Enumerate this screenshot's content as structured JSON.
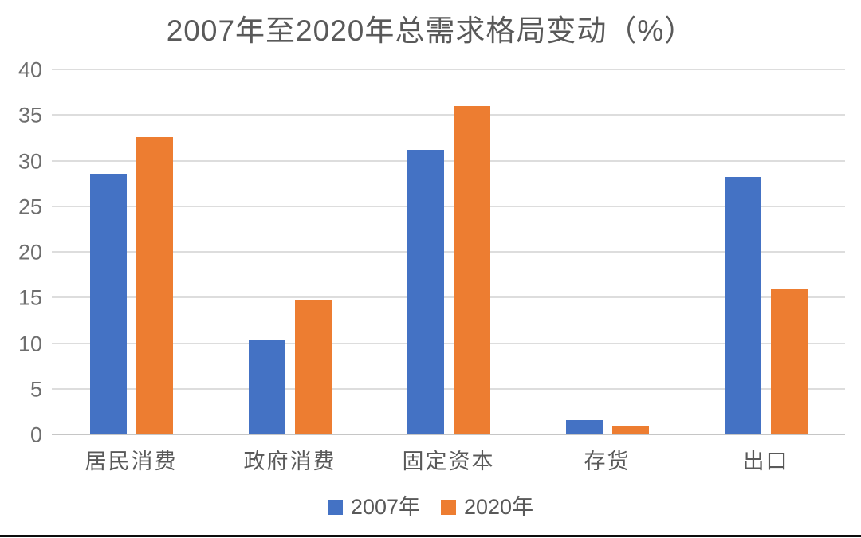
{
  "title": "2007年至2020年总需求格局变动（%）",
  "colors": {
    "series_2007": "#4472C4",
    "series_2020": "#ED7D31",
    "title_text": "#595959",
    "axis_text": "#6e6e6e",
    "gridline": "#dddddd",
    "zero_line": "#c6c6c6",
    "bottom_rule": "#0d0d0d"
  },
  "legend": {
    "items": [
      {
        "label": "2007年",
        "color": "#4472C4"
      },
      {
        "label": "2020年",
        "color": "#ED7D31"
      }
    ],
    "position": "bottom-center"
  },
  "chart_data": {
    "type": "bar",
    "title": "2007年至2020年总需求格局变动（%）",
    "categories": [
      "居民消费",
      "政府消费",
      "固定资本",
      "存货",
      "出口"
    ],
    "series": [
      {
        "name": "2007年",
        "color": "#4472C4",
        "values": [
          28.6,
          10.4,
          31.2,
          1.6,
          28.2
        ]
      },
      {
        "name": "2020年",
        "color": "#ED7D31",
        "values": [
          32.6,
          14.8,
          36.0,
          1.0,
          16.0
        ]
      }
    ],
    "xlabel": "",
    "ylabel": "",
    "ylim": [
      0,
      40
    ],
    "yticks": [
      0,
      5,
      10,
      15,
      20,
      25,
      30,
      35,
      40
    ],
    "grid": true,
    "legend_position": "bottom"
  }
}
